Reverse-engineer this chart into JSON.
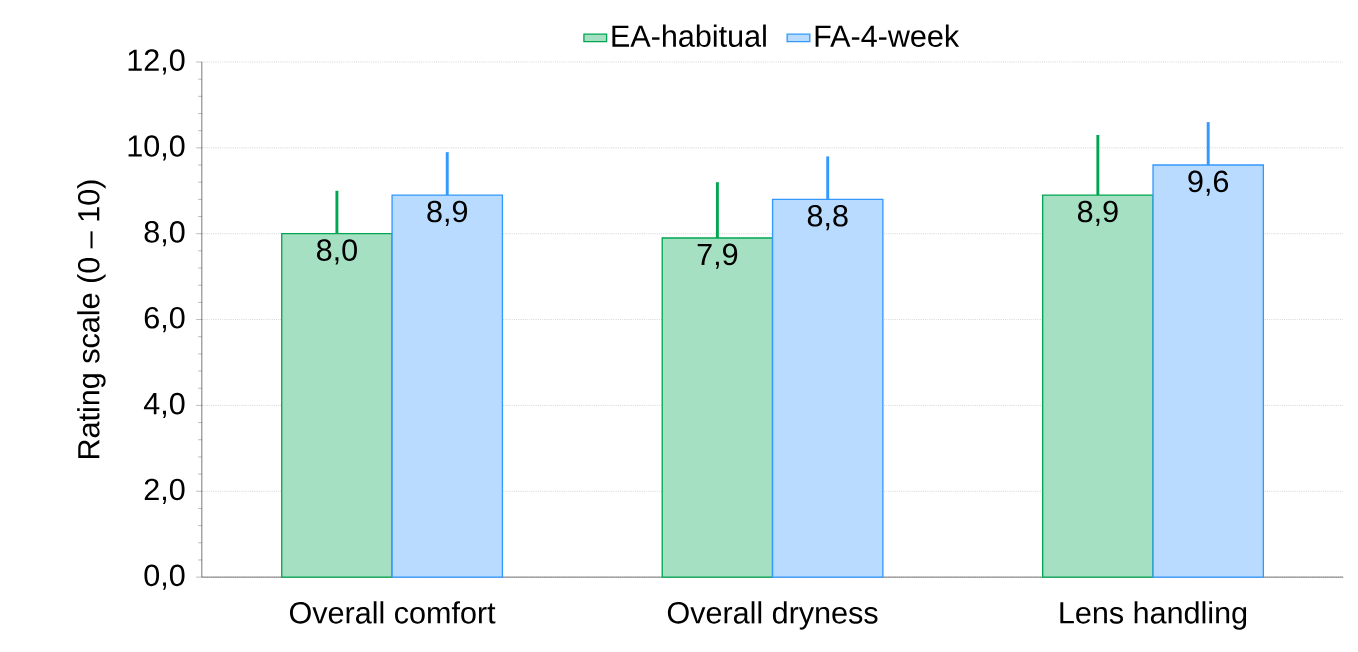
{
  "chart_data": {
    "type": "bar",
    "ylabel": "Rating scale (0 – 10)",
    "categories": [
      "Overall comfort",
      "Overall dryness",
      "Lens handling"
    ],
    "series": [
      {
        "name": "EA-habitual",
        "color": "#00a651",
        "values": [
          8.0,
          7.9,
          8.9
        ],
        "errors": [
          [
            8.0,
            9.0
          ],
          [
            7.9,
            9.2
          ],
          [
            8.9,
            10.3
          ]
        ],
        "value_labels": [
          "8,0",
          "7,9",
          "8,9"
        ]
      },
      {
        "name": "FA-4-week",
        "color": "#3399ff",
        "values": [
          8.9,
          8.8,
          9.6
        ],
        "errors": [
          [
            8.9,
            9.9
          ],
          [
            8.8,
            9.8
          ],
          [
            9.6,
            10.6
          ]
        ],
        "value_labels": [
          "8,9",
          "8,8",
          "9,6"
        ]
      }
    ],
    "ylim": [
      0,
      12
    ],
    "yticks": [
      {
        "value": 0,
        "label": "0,0"
      },
      {
        "value": 2,
        "label": "2,0"
      },
      {
        "value": 4,
        "label": "4,0"
      },
      {
        "value": 6,
        "label": "6,0"
      },
      {
        "value": 8,
        "label": "8,0"
      },
      {
        "value": 10,
        "label": "10,0"
      },
      {
        "value": 12,
        "label": "12,0"
      }
    ],
    "grid": "y",
    "legend": "top"
  }
}
